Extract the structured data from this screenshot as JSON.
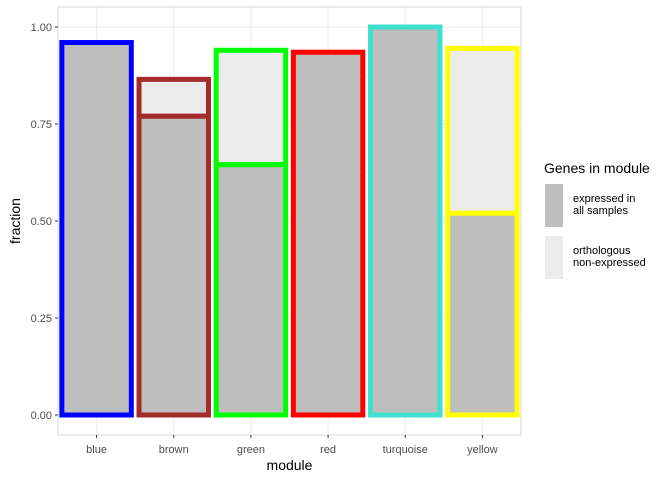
{
  "chart_data": {
    "type": "bar",
    "xlabel": "module",
    "ylabel": "fraction",
    "ylim": [
      0,
      1.03
    ],
    "yticks": [
      "0.00",
      "0.25",
      "0.50",
      "0.75",
      "1.00"
    ],
    "grid": true,
    "categories": [
      "blue",
      "brown",
      "green",
      "red",
      "turquoise",
      "yellow"
    ],
    "outline_colors": [
      "#0000ff",
      "#a52a2a",
      "#00ff00",
      "#ff0000",
      "#40e0d0",
      "#ffff00"
    ],
    "series": [
      {
        "name": "expressed in all samples",
        "color": "#bebebe",
        "values": [
          0.96,
          0.77,
          0.645,
          0.935,
          1.0,
          0.52
        ]
      },
      {
        "name": "orthologous non-expressed",
        "color": "#ececec",
        "values": [
          0.0,
          0.095,
          0.295,
          0.0,
          0.0,
          0.425
        ]
      }
    ],
    "legend": {
      "title": "Genes in module",
      "placement": "right",
      "entries": [
        {
          "lines": [
            "expressed in",
            "all samples"
          ],
          "color": "#bebebe"
        },
        {
          "lines": [
            "orthologous",
            "non-expressed"
          ],
          "color": "#ececec"
        }
      ]
    }
  }
}
